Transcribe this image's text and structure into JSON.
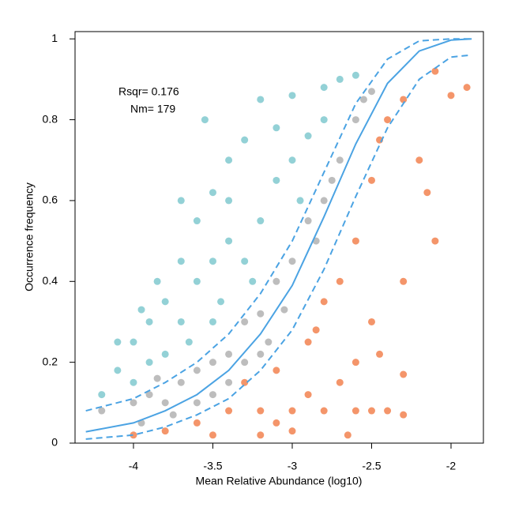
{
  "chart_data": {
    "type": "scatter",
    "x_label": "Mean Relative Abundance (log10)",
    "y_label": "Occurrence frequency",
    "annotations": [
      "Rsqr= 0.176",
      "Nm= 179"
    ],
    "xlim": [
      -4.368,
      -1.796
    ],
    "ylim": [
      0,
      1.018
    ],
    "xticks": [
      -4,
      -3.5,
      -3,
      -2.5,
      -2
    ],
    "yticks": [
      0,
      0.2,
      0.4,
      0.6,
      0.8,
      1
    ],
    "series": [
      {
        "mode": "points",
        "color": "#93d1d6",
        "x": [
          -4.2,
          -4.1,
          -4.0,
          -3.9,
          -3.8,
          -3.7,
          -3.6,
          -3.5,
          -3.4,
          -3.3,
          -3.2,
          -3.0,
          -2.8,
          -2.7,
          -2.6,
          -3.5,
          -3.6,
          -3.8,
          -3.9,
          -4.0,
          -3.3,
          -3.2,
          -3.1,
          -3.0,
          -2.9,
          -2.8,
          -3.4,
          -3.7,
          -3.85,
          -3.55,
          -3.4,
          -3.25,
          -3.1,
          -3.5,
          -3.7,
          -4.1,
          -3.95,
          -3.65,
          -3.45,
          -2.95
        ],
        "y": [
          0.12,
          0.18,
          0.25,
          0.3,
          0.35,
          0.45,
          0.55,
          0.62,
          0.7,
          0.75,
          0.85,
          0.86,
          0.88,
          0.9,
          0.91,
          0.3,
          0.4,
          0.22,
          0.2,
          0.15,
          0.45,
          0.55,
          0.65,
          0.7,
          0.76,
          0.8,
          0.5,
          0.3,
          0.4,
          0.8,
          0.6,
          0.4,
          0.78,
          0.45,
          0.6,
          0.25,
          0.33,
          0.25,
          0.35,
          0.6
        ]
      },
      {
        "mode": "points",
        "color": "#bdbdbd",
        "x": [
          -4.2,
          -4.0,
          -3.9,
          -3.8,
          -3.7,
          -3.6,
          -3.5,
          -3.4,
          -3.3,
          -3.2,
          -3.1,
          -3.0,
          -2.9,
          -2.8,
          -2.7,
          -2.6,
          -2.55,
          -2.5,
          -3.95,
          -3.75,
          -3.5,
          -3.3,
          -3.15,
          -3.05,
          -2.85,
          -2.75,
          -3.85,
          -3.6,
          -3.4,
          -3.2
        ],
        "y": [
          0.08,
          0.1,
          0.12,
          0.1,
          0.15,
          0.18,
          0.2,
          0.22,
          0.3,
          0.32,
          0.4,
          0.45,
          0.55,
          0.6,
          0.7,
          0.8,
          0.85,
          0.87,
          0.05,
          0.07,
          0.12,
          0.2,
          0.25,
          0.33,
          0.5,
          0.65,
          0.16,
          0.1,
          0.15,
          0.22
        ]
      },
      {
        "mode": "points",
        "color": "#f4956a",
        "x": [
          -4.0,
          -3.8,
          -3.6,
          -3.4,
          -3.2,
          -3.0,
          -2.8,
          -2.6,
          -2.4,
          -3.3,
          -3.1,
          -2.9,
          -2.8,
          -2.7,
          -2.6,
          -2.5,
          -2.45,
          -2.4,
          -2.3,
          -2.1,
          -2.0,
          -1.9,
          -2.2,
          -2.15,
          -2.1,
          -2.3,
          -2.5,
          -2.6,
          -2.3,
          -2.5,
          -2.3,
          -3.5,
          -3.2,
          -3.0,
          -2.7,
          -2.9,
          -3.1,
          -2.85,
          -2.65,
          -2.45
        ],
        "y": [
          0.02,
          0.03,
          0.05,
          0.08,
          0.08,
          0.08,
          0.08,
          0.08,
          0.08,
          0.15,
          0.18,
          0.25,
          0.35,
          0.4,
          0.5,
          0.65,
          0.75,
          0.8,
          0.85,
          0.92,
          0.86,
          0.88,
          0.7,
          0.62,
          0.5,
          0.4,
          0.3,
          0.2,
          0.17,
          0.08,
          0.07,
          0.02,
          0.02,
          0.03,
          0.15,
          0.12,
          0.05,
          0.28,
          0.02,
          0.22
        ]
      },
      {
        "mode": "line",
        "color": "#4ba3e3",
        "dash": false,
        "x": [
          -4.3,
          -4.0,
          -3.8,
          -3.6,
          -3.4,
          -3.2,
          -3.0,
          -2.8,
          -2.6,
          -2.4,
          -2.2,
          -2.0,
          -1.87
        ],
        "y": [
          0.028,
          0.05,
          0.08,
          0.12,
          0.18,
          0.27,
          0.39,
          0.56,
          0.74,
          0.89,
          0.97,
          0.997,
          1.0
        ]
      },
      {
        "mode": "line",
        "color": "#4ba3e3",
        "dash": true,
        "x": [
          -4.3,
          -4.0,
          -3.8,
          -3.6,
          -3.4,
          -3.2,
          -3.0,
          -2.8,
          -2.6,
          -2.4,
          -2.2,
          -2.0,
          -1.87
        ],
        "y": [
          0.08,
          0.11,
          0.15,
          0.2,
          0.27,
          0.37,
          0.5,
          0.67,
          0.84,
          0.95,
          0.995,
          1.0,
          1.0
        ]
      },
      {
        "mode": "line",
        "color": "#4ba3e3",
        "dash": true,
        "x": [
          -4.3,
          -4.0,
          -3.8,
          -3.6,
          -3.4,
          -3.2,
          -3.0,
          -2.8,
          -2.6,
          -2.4,
          -2.2,
          -2.0,
          -1.87
        ],
        "y": [
          0.01,
          0.02,
          0.04,
          0.07,
          0.11,
          0.18,
          0.28,
          0.43,
          0.61,
          0.78,
          0.9,
          0.955,
          0.96
        ]
      }
    ]
  }
}
